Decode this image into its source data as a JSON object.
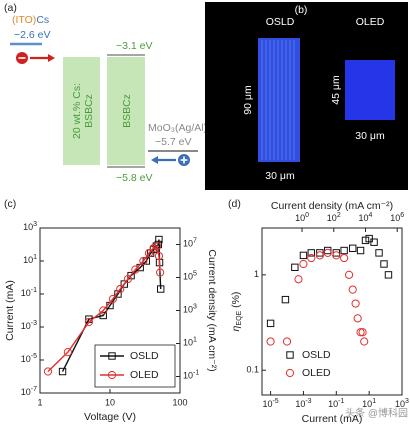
{
  "panel_a": {
    "label": "(a)",
    "cathode_prefix": "(ITO)",
    "cathode": "Cs",
    "cathode_level": "−2.6 eV",
    "lumo": "−3.1 eV",
    "layer1_line1": "20 wt.% Cs:",
    "layer1_line2": "BSBCz",
    "layer2": "BSBCz",
    "anode": "MoO₃(Ag/Al)",
    "anode_level": "−5.7 eV",
    "homo": "−5.8 eV"
  },
  "panel_b": {
    "label": "(b)",
    "left_name": "OSLD",
    "right_name": "OLED",
    "left_height": "90 μm",
    "left_width": "30 μm",
    "right_height": "45 μm",
    "right_width": "30 μm"
  },
  "watermark": "头条 @博科园",
  "chart_data": [
    {
      "type": "line",
      "panel": "(c)",
      "x_label": "Voltage (V)",
      "y_label": "Current (mA)",
      "y2_label": "Current density (mA cm⁻²)",
      "log_x": true,
      "log_y": true,
      "xlim": [
        1,
        100
      ],
      "xticks": [
        1,
        10,
        100
      ],
      "ylim": [
        1e-07,
        1000
      ],
      "yticks": [
        {
          "value": 1e-07,
          "label": "10^-7"
        },
        {
          "value": 1e-05,
          "label": "10^-5"
        },
        {
          "value": 0.001,
          "label": "10^-3"
        },
        {
          "value": 0.1,
          "label": "10^-1"
        },
        {
          "value": 10,
          "label": "10^1"
        },
        {
          "value": 1000,
          "label": "10^3"
        }
      ],
      "y2lim": [
        0.01,
        100000000
      ],
      "y2ticks": [
        {
          "value": 0.1,
          "label": "10^-1"
        },
        {
          "value": 10,
          "label": "10^1"
        },
        {
          "value": 1000,
          "label": "10^3"
        },
        {
          "value": 100000,
          "label": "10^5"
        },
        {
          "value": 10000000,
          "label": "10^7"
        }
      ],
      "legend": "lower right",
      "series": [
        {
          "name": "OSLD",
          "color": "#111111",
          "marker": "square",
          "x": [
            2.1,
            5,
            8,
            10,
            13,
            16,
            20,
            27,
            33,
            38,
            42,
            46,
            49,
            50,
            51,
            53
          ],
          "values": [
            2e-06,
            0.003,
            0.005,
            0.02,
            0.1,
            0.4,
            1.3,
            4,
            10,
            30,
            50,
            80,
            100,
            200,
            8,
            0.2
          ]
        },
        {
          "name": "OLED",
          "color": "#e03030",
          "marker": "circle",
          "x": [
            1.3,
            2.5,
            5,
            8,
            11,
            14,
            18,
            23,
            30,
            36,
            42,
            47,
            50,
            52
          ],
          "values": [
            2e-06,
            3e-05,
            0.002,
            0.01,
            0.05,
            0.2,
            0.8,
            3,
            10,
            30,
            60,
            80,
            20,
            2
          ]
        }
      ]
    },
    {
      "type": "scatter",
      "panel": "(d)",
      "x_label": "Current (mA)",
      "x2_label": "Current density (mA cm⁻²)",
      "y_label": {
        "symbol": "η",
        "subscript": "EQE",
        "unit": " (%)"
      },
      "log_x": true,
      "log_y": true,
      "xlim": [
        3e-06,
        1000
      ],
      "xticks": [
        {
          "value": 1e-05,
          "label": "10^-5"
        },
        {
          "value": 0.001,
          "label": "10^-3"
        },
        {
          "value": 0.1,
          "label": "10^-1"
        },
        {
          "value": 10,
          "label": "10^1"
        },
        {
          "value": 1000,
          "label": "10^3"
        }
      ],
      "x2lim": [
        0.003,
        2000000
      ],
      "x2ticks": [
        {
          "value": 1,
          "label": "10^0"
        },
        {
          "value": 100,
          "label": "10^2"
        },
        {
          "value": 10000,
          "label": "10^4"
        },
        {
          "value": 1000000,
          "label": "10^6"
        }
      ],
      "ylim": [
        0.055,
        3.1
      ],
      "yticks": [
        0.1,
        1
      ],
      "legend": "lower left",
      "series": [
        {
          "name": "OSLD",
          "color": "#111111",
          "marker": "square",
          "x": [
            1e-05,
            8e-05,
            0.0003,
            0.001,
            0.003,
            0.01,
            0.03,
            0.1,
            0.3,
            1,
            3,
            6,
            10,
            20,
            40,
            80,
            150
          ],
          "values": [
            0.31,
            0.55,
            1.2,
            1.6,
            1.7,
            1.7,
            1.8,
            1.7,
            1.8,
            1.9,
            1.8,
            2.3,
            2.4,
            2.2,
            1.7,
            1.3,
            1.0
          ]
        },
        {
          "name": "OLED",
          "color": "#e03030",
          "marker": "circle",
          "x": [
            1e-05,
            0.0001,
            0.0005,
            0.001,
            0.003,
            0.01,
            0.03,
            0.1,
            0.3,
            0.6,
            1,
            1.5,
            2,
            3,
            4,
            5
          ],
          "values": [
            0.2,
            0.2,
            0.9,
            1.3,
            1.5,
            1.6,
            1.7,
            1.6,
            1.5,
            1.0,
            0.7,
            0.5,
            0.35,
            0.25,
            0.25,
            0.2
          ]
        }
      ]
    }
  ]
}
